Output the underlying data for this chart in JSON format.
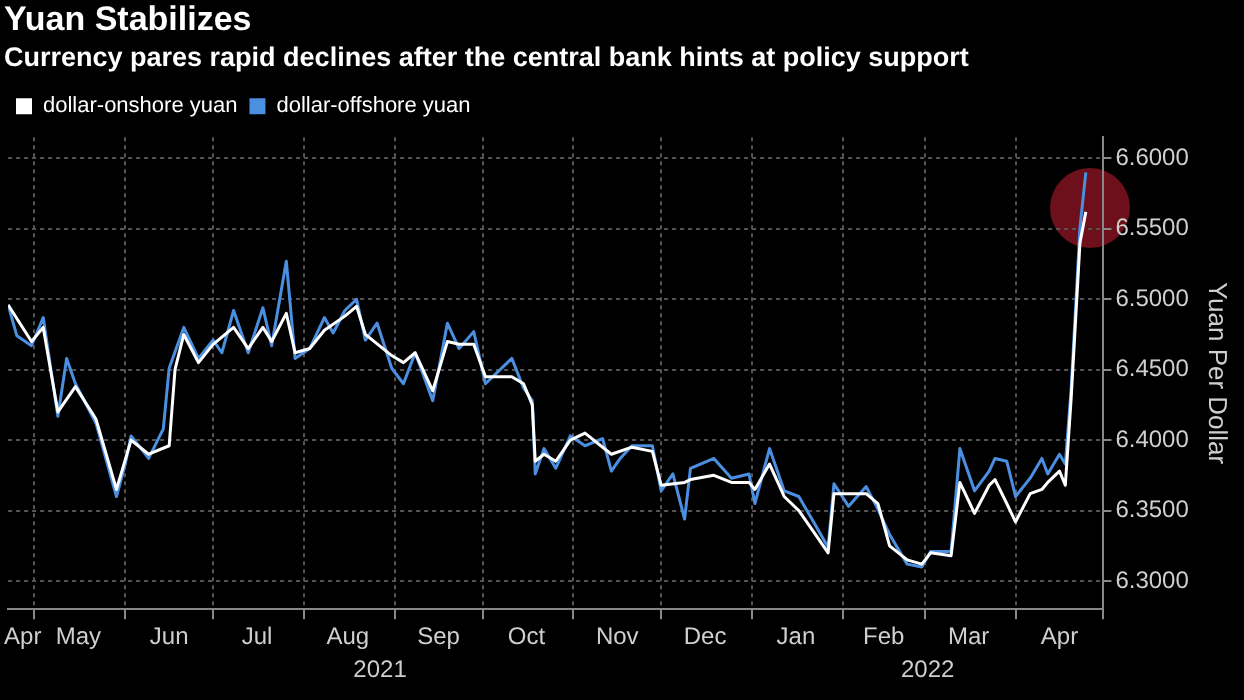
{
  "chart_data": {
    "type": "line",
    "title": "Yuan Stabilizes",
    "subtitle": "Currency pares rapid declines after the central bank hints at policy support",
    "ylabel": "Yuan Per Dollar",
    "legend": "top left",
    "grid": true,
    "marker": "none",
    "line_style": "solid",
    "xlim": [
      "2021-04-22",
      "2022-05-01"
    ],
    "xticks": [
      {
        "value": "2021-04-27",
        "label": "Apr"
      },
      {
        "value": "2021-05-01",
        "label": null
      },
      {
        "value": "2021-05-16",
        "label": "May"
      },
      {
        "value": "2021-06-01",
        "label": null
      },
      {
        "value": "2021-06-16",
        "label": "Jun"
      },
      {
        "value": "2021-07-01",
        "label": null
      },
      {
        "value": "2021-07-16",
        "label": "Jul"
      },
      {
        "value": "2021-08-01",
        "label": null
      },
      {
        "value": "2021-08-16",
        "label": "Aug"
      },
      {
        "value": "2021-09-01",
        "label": null
      },
      {
        "value": "2021-09-16",
        "label": "Sep"
      },
      {
        "value": "2021-10-01",
        "label": null
      },
      {
        "value": "2021-10-16",
        "label": "Oct"
      },
      {
        "value": "2021-11-01",
        "label": null
      },
      {
        "value": "2021-11-16",
        "label": "Nov"
      },
      {
        "value": "2021-12-01",
        "label": null
      },
      {
        "value": "2021-12-16",
        "label": "Dec"
      },
      {
        "value": "2022-01-01",
        "label": null
      },
      {
        "value": "2022-01-16",
        "label": "Jan"
      },
      {
        "value": "2022-02-01",
        "label": null
      },
      {
        "value": "2022-02-15",
        "label": "Feb"
      },
      {
        "value": "2022-03-01",
        "label": null
      },
      {
        "value": "2022-03-16",
        "label": "Mar"
      },
      {
        "value": "2022-04-01",
        "label": null
      },
      {
        "value": "2022-04-16",
        "label": "Apr"
      },
      {
        "value": "2022-05-01",
        "label": null
      }
    ],
    "ylim": [
      6.28,
      6.615
    ],
    "yticks": [
      {
        "value": 6.3,
        "label": "6.3000"
      },
      {
        "value": 6.35,
        "label": "6.3500"
      },
      {
        "value": 6.4,
        "label": "6.4000"
      },
      {
        "value": 6.45,
        "label": "6.4500"
      },
      {
        "value": 6.5,
        "label": "6.5000"
      },
      {
        "value": 6.55,
        "label": "6.5500"
      },
      {
        "value": 6.6,
        "label": "6.6000"
      }
    ],
    "annotations": [
      "2021",
      "2022"
    ],
    "series": [
      {
        "name": "dollar-onshore yuan",
        "color": "#ffffff",
        "x": [
          "2021-04-22",
          "2021-04-30",
          "2021-05-04",
          "2021-05-09",
          "2021-05-15",
          "2021-05-22",
          "2021-05-29",
          "2021-06-03",
          "2021-06-09",
          "2021-06-16",
          "2021-06-18",
          "2021-06-21",
          "2021-06-26",
          "2021-07-01",
          "2021-07-08",
          "2021-07-13",
          "2021-07-18",
          "2021-07-21",
          "2021-07-26",
          "2021-07-29",
          "2021-08-03",
          "2021-08-08",
          "2021-08-15",
          "2021-08-19",
          "2021-08-22",
          "2021-08-31",
          "2021-09-04",
          "2021-09-08",
          "2021-09-14",
          "2021-09-19",
          "2021-09-23",
          "2021-09-28",
          "2021-10-02",
          "2021-10-11",
          "2021-10-15",
          "2021-10-18",
          "2021-10-19",
          "2021-10-22",
          "2021-10-26",
          "2021-10-31",
          "2021-11-05",
          "2021-11-14",
          "2021-11-21",
          "2021-11-28",
          "2021-12-01",
          "2021-12-09",
          "2021-12-11",
          "2021-12-19",
          "2021-12-25",
          "2021-12-31",
          "2022-01-02",
          "2022-01-07",
          "2022-01-12",
          "2022-01-17",
          "2022-01-22",
          "2022-01-27",
          "2022-01-29",
          "2022-02-03",
          "2022-02-09",
          "2022-02-13",
          "2022-02-17",
          "2022-02-23",
          "2022-02-28",
          "2022-03-03",
          "2022-03-10",
          "2022-03-13",
          "2022-03-18",
          "2022-03-23",
          "2022-03-25",
          "2022-03-29",
          "2022-04-01",
          "2022-04-06",
          "2022-04-10",
          "2022-04-12",
          "2022-04-16",
          "2022-04-18",
          "2022-04-20",
          "2022-04-23",
          "2022-04-25"
        ],
        "values": [
          6.496,
          6.47,
          6.48,
          6.42,
          6.438,
          6.415,
          6.365,
          6.4,
          6.39,
          6.396,
          6.45,
          6.475,
          6.455,
          6.468,
          6.48,
          6.465,
          6.48,
          6.47,
          6.49,
          6.462,
          6.465,
          6.478,
          6.488,
          6.495,
          6.475,
          6.46,
          6.455,
          6.462,
          6.435,
          6.47,
          6.468,
          6.468,
          6.445,
          6.445,
          6.44,
          6.425,
          6.385,
          6.39,
          6.385,
          6.4,
          6.405,
          6.39,
          6.395,
          6.392,
          6.368,
          6.37,
          6.372,
          6.375,
          6.37,
          6.37,
          6.365,
          6.383,
          6.36,
          6.35,
          6.335,
          6.32,
          6.362,
          6.362,
          6.362,
          6.355,
          6.325,
          6.315,
          6.312,
          6.32,
          6.318,
          6.37,
          6.348,
          6.368,
          6.372,
          6.355,
          6.342,
          6.362,
          6.365,
          6.37,
          6.378,
          6.368,
          6.43,
          6.54,
          6.562
        ]
      },
      {
        "name": "dollar-offshore yuan",
        "color": "#4a8fe0",
        "x": [
          "2021-04-22",
          "2021-04-25",
          "2021-04-30",
          "2021-05-04",
          "2021-05-09",
          "2021-05-12",
          "2021-05-15",
          "2021-05-22",
          "2021-05-29",
          "2021-06-01",
          "2021-06-03",
          "2021-06-09",
          "2021-06-14",
          "2021-06-16",
          "2021-06-21",
          "2021-06-26",
          "2021-07-01",
          "2021-07-04",
          "2021-07-08",
          "2021-07-13",
          "2021-07-18",
          "2021-07-21",
          "2021-07-26",
          "2021-07-29",
          "2021-08-03",
          "2021-08-08",
          "2021-08-11",
          "2021-08-15",
          "2021-08-19",
          "2021-08-22",
          "2021-08-26",
          "2021-08-31",
          "2021-09-04",
          "2021-09-08",
          "2021-09-14",
          "2021-09-19",
          "2021-09-23",
          "2021-09-28",
          "2021-10-02",
          "2021-10-11",
          "2021-10-15",
          "2021-10-18",
          "2021-10-19",
          "2021-10-22",
          "2021-10-26",
          "2021-10-31",
          "2021-11-05",
          "2021-11-11",
          "2021-11-14",
          "2021-11-17",
          "2021-11-21",
          "2021-11-28",
          "2021-12-01",
          "2021-12-05",
          "2021-12-09",
          "2021-12-11",
          "2021-12-19",
          "2021-12-25",
          "2021-12-31",
          "2022-01-02",
          "2022-01-07",
          "2022-01-12",
          "2022-01-17",
          "2022-01-22",
          "2022-01-27",
          "2022-01-29",
          "2022-02-03",
          "2022-02-09",
          "2022-02-13",
          "2022-02-17",
          "2022-02-23",
          "2022-02-28",
          "2022-03-03",
          "2022-03-10",
          "2022-03-13",
          "2022-03-18",
          "2022-03-23",
          "2022-03-25",
          "2022-03-29",
          "2022-04-01",
          "2022-04-06",
          "2022-04-10",
          "2022-04-12",
          "2022-04-16",
          "2022-04-18",
          "2022-04-20",
          "2022-04-23",
          "2022-04-25"
        ],
        "values": [
          6.496,
          6.474,
          6.467,
          6.487,
          6.417,
          6.458,
          6.44,
          6.412,
          6.36,
          6.383,
          6.403,
          6.387,
          6.408,
          6.451,
          6.48,
          6.458,
          6.471,
          6.462,
          6.492,
          6.462,
          6.494,
          6.467,
          6.527,
          6.458,
          6.465,
          6.487,
          6.476,
          6.492,
          6.5,
          6.471,
          6.483,
          6.451,
          6.44,
          6.462,
          6.428,
          6.483,
          6.465,
          6.477,
          6.44,
          6.458,
          6.437,
          6.428,
          6.376,
          6.394,
          6.38,
          6.403,
          6.396,
          6.401,
          6.378,
          6.387,
          6.396,
          6.396,
          6.364,
          6.376,
          6.344,
          6.38,
          6.387,
          6.373,
          6.376,
          6.355,
          6.394,
          6.364,
          6.36,
          6.342,
          6.324,
          6.369,
          6.353,
          6.367,
          6.351,
          6.333,
          6.312,
          6.31,
          6.321,
          6.321,
          6.394,
          6.364,
          6.378,
          6.387,
          6.385,
          6.36,
          6.373,
          6.387,
          6.376,
          6.39,
          6.383,
          6.437,
          6.551,
          6.59
        ]
      }
    ]
  }
}
